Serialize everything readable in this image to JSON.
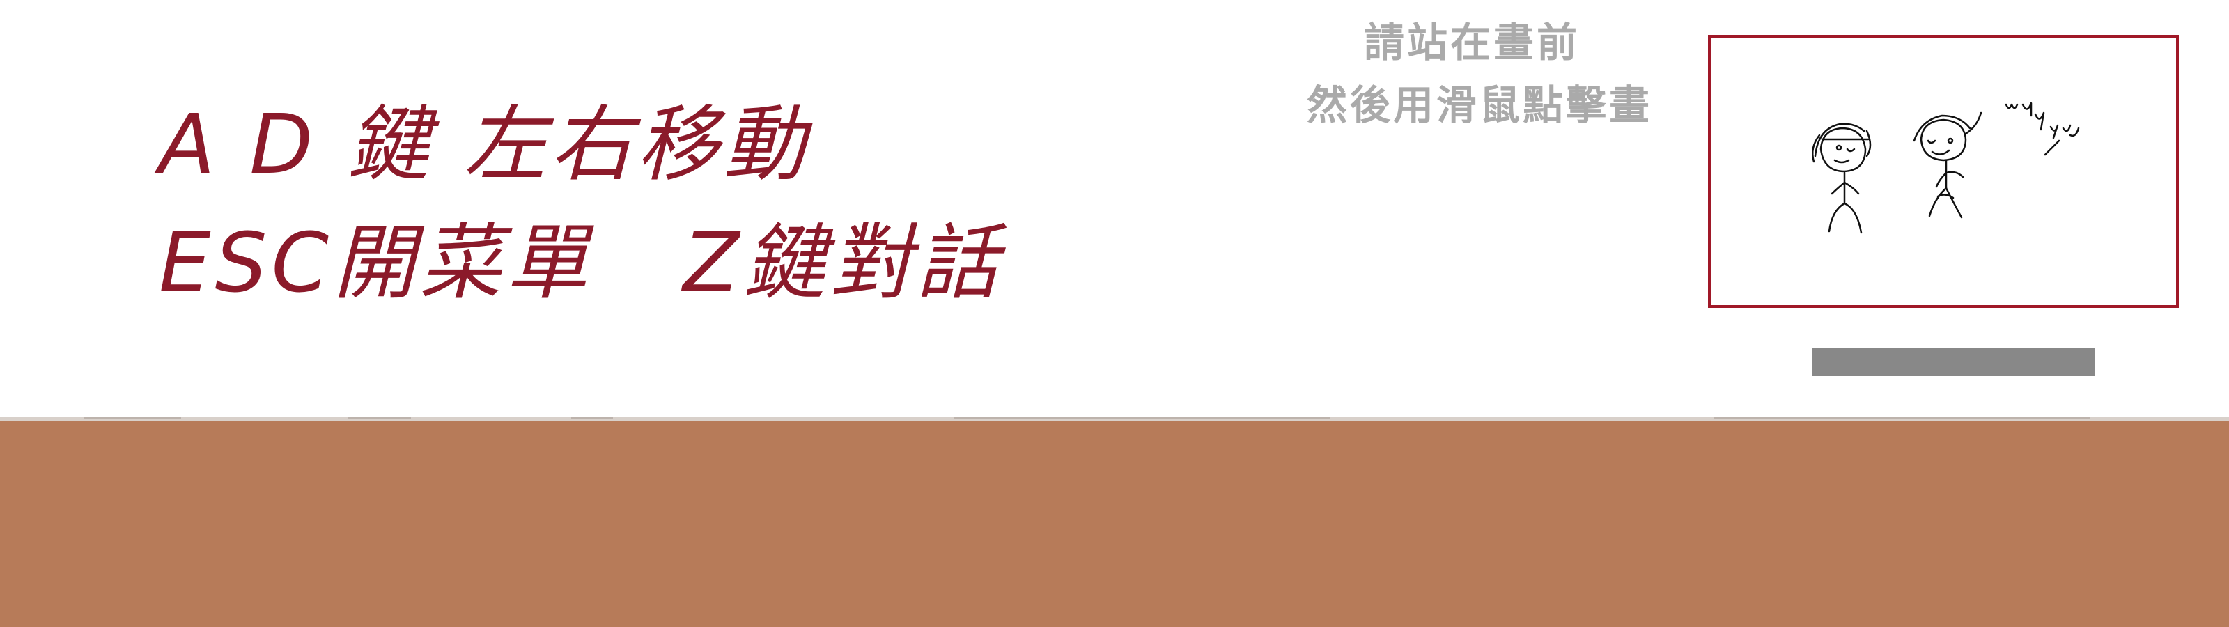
{
  "instructions": {
    "line1": "A D 鍵 左右移動",
    "line2": "ESC開菜單   Z鍵對話"
  },
  "hint": {
    "line1": "請站在畫前",
    "line2": "然後用滑鼠點擊畫"
  },
  "colors": {
    "instruction_text": "#8b1a2a",
    "hint_text": "#aaaaaa",
    "painting_border": "#a01828",
    "floor": "#b77b59",
    "interact_bar": "#888888"
  }
}
